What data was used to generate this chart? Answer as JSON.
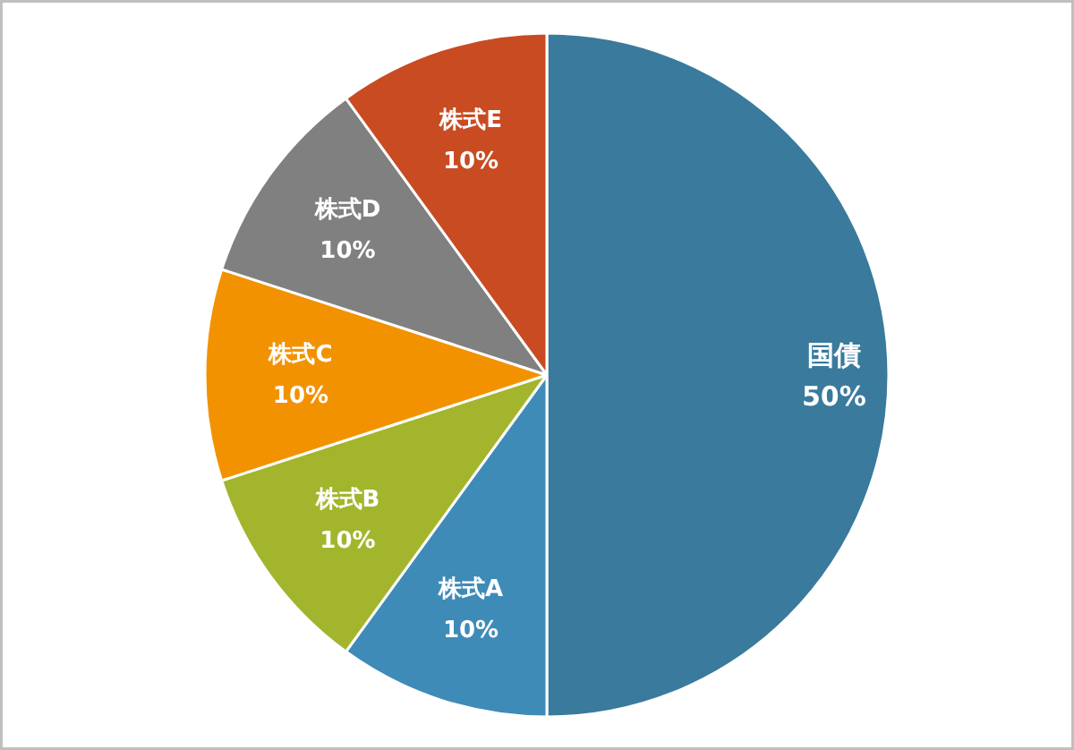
{
  "chart_data": {
    "type": "pie",
    "categories": [
      "国債",
      "株式A",
      "株式B",
      "株式C",
      "株式D",
      "株式E"
    ],
    "values": [
      50,
      10,
      10,
      10,
      10,
      10
    ],
    "value_labels": [
      "50%",
      "10%",
      "10%",
      "10%",
      "10%",
      "10%"
    ],
    "colors": [
      "#3a7a9c",
      "#3f8bb8",
      "#a3b52c",
      "#f39200",
      "#808080",
      "#c84b22"
    ]
  }
}
